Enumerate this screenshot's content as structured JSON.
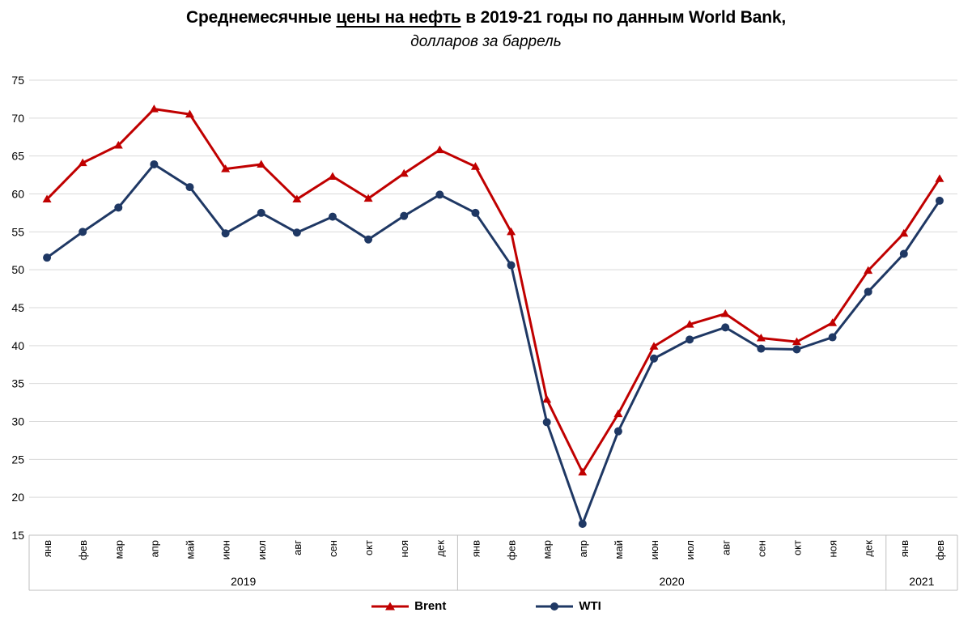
{
  "title": {
    "prefix": "Среднемесячные ",
    "underlined": "цены на нефть",
    "suffix": " в 2019-21 годы по данным World Bank,",
    "subtitle": "долларов за баррель"
  },
  "legend": [
    {
      "name": "Brent",
      "marker": "triangle",
      "color": "#c00000"
    },
    {
      "name": "WTI",
      "marker": "circle",
      "color": "#1f3864"
    }
  ],
  "colors": {
    "brent": "#c00000",
    "wti": "#1f3864",
    "gridline": "#d9d9d9",
    "axis_band": "#bfbfbf",
    "tick_text": "#000000"
  },
  "chart_data": {
    "type": "line",
    "title": "Среднемесячные цены на нефть в 2019-21 годы по данным World Bank",
    "subtitle": "долларов за баррель",
    "ylabel": "",
    "xlabel": "",
    "ylim": [
      15,
      75
    ],
    "yticks": [
      15,
      20,
      25,
      30,
      35,
      40,
      45,
      50,
      55,
      60,
      65,
      70,
      75
    ],
    "grid": true,
    "legend_position": "bottom",
    "x_groups": [
      {
        "year": "2019",
        "months": [
          "янв",
          "фев",
          "мар",
          "апр",
          "май",
          "июн",
          "июл",
          "авг",
          "сен",
          "окт",
          "ноя",
          "дек"
        ]
      },
      {
        "year": "2020",
        "months": [
          "янв",
          "фев",
          "мар",
          "апр",
          "май",
          "июн",
          "июл",
          "авг",
          "сен",
          "окт",
          "ноя",
          "дек"
        ]
      },
      {
        "year": "2021",
        "months": [
          "янв",
          "фев"
        ]
      }
    ],
    "categories": [
      "янв",
      "фев",
      "мар",
      "апр",
      "май",
      "июн",
      "июл",
      "авг",
      "сен",
      "окт",
      "ноя",
      "дек",
      "янв",
      "фев",
      "мар",
      "апр",
      "май",
      "июн",
      "июл",
      "авг",
      "сен",
      "окт",
      "ноя",
      "дек",
      "янв",
      "фев"
    ],
    "series": [
      {
        "name": "Brent",
        "color": "#c00000",
        "marker": "triangle",
        "values": [
          59.3,
          64.1,
          66.4,
          71.2,
          70.5,
          63.3,
          63.9,
          59.3,
          62.3,
          59.4,
          62.7,
          65.8,
          63.6,
          55.0,
          32.9,
          23.3,
          31.0,
          39.9,
          42.8,
          44.2,
          41.0,
          40.5,
          43.0,
          49.9,
          54.8,
          62.0
        ]
      },
      {
        "name": "WTI",
        "color": "#1f3864",
        "marker": "circle",
        "values": [
          51.6,
          55.0,
          58.2,
          63.9,
          60.9,
          54.8,
          57.5,
          54.9,
          57.0,
          54.0,
          57.1,
          59.9,
          57.5,
          50.6,
          29.9,
          16.5,
          28.7,
          38.3,
          40.8,
          42.4,
          39.6,
          39.5,
          41.1,
          47.1,
          52.1,
          59.1
        ]
      }
    ]
  }
}
